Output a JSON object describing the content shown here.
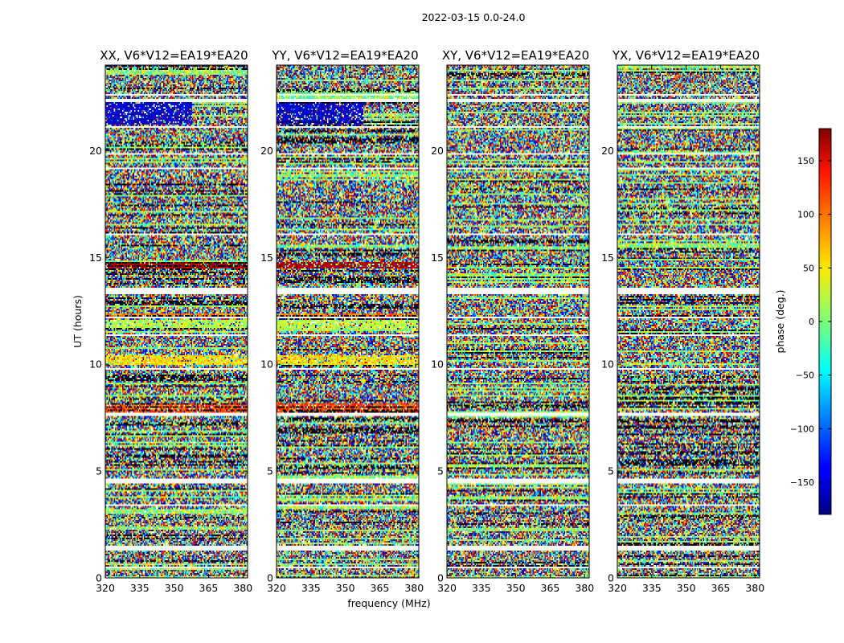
{
  "chart_data": {
    "type": "heatmap",
    "suptitle": "2022-03-15 0.0-24.0",
    "xlabel": "frequency (MHz)",
    "ylabel": "UT (hours)",
    "xlim": [
      320,
      382
    ],
    "ylim": [
      0,
      24
    ],
    "x_ticks": [
      "320",
      "335",
      "350",
      "365",
      "380"
    ],
    "x_tick_values": [
      320,
      335,
      350,
      365,
      380
    ],
    "y_ticks": [
      "0",
      "5",
      "10",
      "15",
      "20"
    ],
    "y_tick_values": [
      0,
      5,
      10,
      15,
      20
    ],
    "panels": [
      {
        "title": "XX, V6*V12=EA19*EA20",
        "polarization": "XX"
      },
      {
        "title": "YY, V6*V12=EA19*EA20",
        "polarization": "YY"
      },
      {
        "title": "XY, V6*V12=EA19*EA20",
        "polarization": "XY"
      },
      {
        "title": "YX, V6*V12=EA19*EA20",
        "polarization": "YX"
      }
    ],
    "colorbar": {
      "label": "phase (deg.)",
      "range": [
        -180,
        180
      ],
      "ticks": [
        "150",
        "100",
        "50",
        "0",
        "−50",
        "−100",
        "−150"
      ],
      "tick_values": [
        150,
        100,
        50,
        0,
        -50,
        -100,
        -150
      ],
      "colormap": "jet"
    },
    "flagged_time_bands_hours": [
      [
        0.45,
        0.52
      ],
      [
        1.3,
        1.48
      ],
      [
        3.4,
        3.46
      ],
      [
        4.45,
        4.62
      ],
      [
        7.55,
        7.7
      ],
      [
        9.75,
        9.85
      ],
      [
        11.3,
        11.37
      ],
      [
        12.15,
        12.25
      ],
      [
        13.3,
        13.6
      ],
      [
        16.05,
        16.12
      ],
      [
        19.1,
        19.17
      ],
      [
        19.8,
        19.88
      ],
      [
        21.05,
        21.12
      ],
      [
        22.3,
        22.4
      ],
      [
        22.55,
        22.62
      ]
    ],
    "coherent_phase_bands": [
      {
        "t0": 21.2,
        "t1": 22.3,
        "phase_deg": -150,
        "panels": [
          "XX",
          "YY"
        ],
        "freq_span": [
          320,
          358
        ]
      },
      {
        "t0": 14.5,
        "t1": 14.75,
        "phase_deg": 170,
        "panels": [
          "XX",
          "YY"
        ],
        "freq_span": [
          320,
          382
        ]
      },
      {
        "t0": 11.65,
        "t1": 12.05,
        "phase_deg": 20,
        "panels": [
          "XX",
          "YY"
        ],
        "freq_span": [
          320,
          382
        ]
      },
      {
        "t0": 12.25,
        "t1": 12.4,
        "phase_deg": 90,
        "panels": [
          "XX",
          "YY"
        ],
        "freq_span": [
          320,
          382
        ]
      },
      {
        "t0": 9.95,
        "t1": 10.45,
        "phase_deg": 55,
        "panels": [
          "XX",
          "YY"
        ],
        "freq_span": [
          320,
          382
        ]
      },
      {
        "t0": 7.75,
        "t1": 8.15,
        "phase_deg": 110,
        "panels": [
          "XX",
          "YY"
        ],
        "freq_span": [
          320,
          382
        ]
      }
    ]
  }
}
